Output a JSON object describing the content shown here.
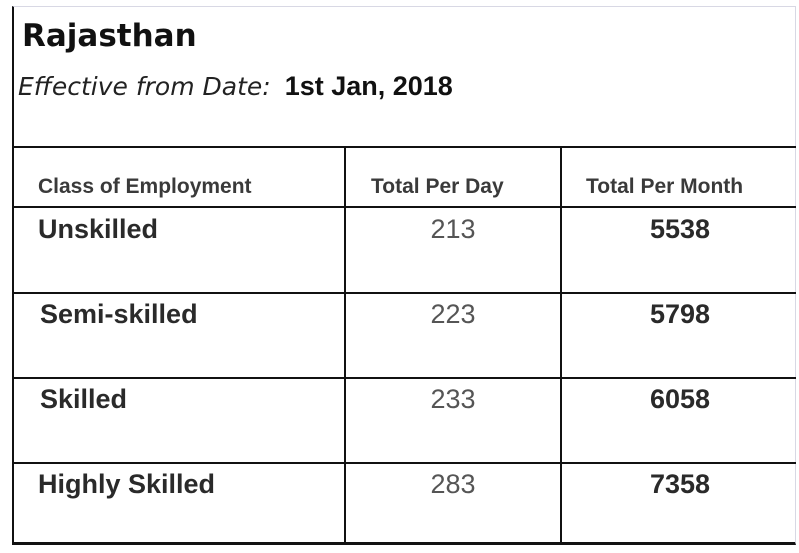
{
  "state": "Rajasthan",
  "effective": {
    "label": "Effective from Date:",
    "date": "1st Jan, 2018"
  },
  "table": {
    "headers": [
      "Class of Employment",
      "Total Per Day",
      "Total Per Month"
    ],
    "rows": [
      {
        "class": "Unskilled",
        "per_day": "213",
        "per_month": "5538"
      },
      {
        "class": "Semi-skilled",
        "per_day": "223",
        "per_month": "5798"
      },
      {
        "class": "Skilled",
        "per_day": "233",
        "per_month": "6058"
      },
      {
        "class": "Highly Skilled",
        "per_day": "283",
        "per_month": "7358"
      }
    ]
  }
}
